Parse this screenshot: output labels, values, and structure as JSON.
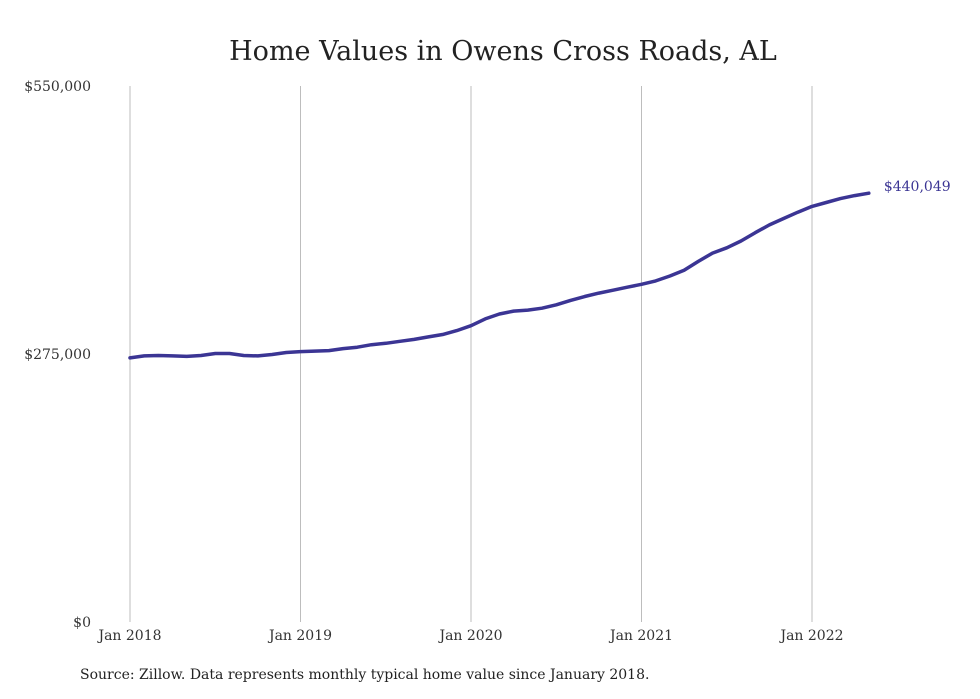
{
  "colors": {
    "line": "#3B3594",
    "grid": "#BDBDBD",
    "text": "#222222"
  },
  "source": "Source: Zillow. Data represents monthly typical home value since January 2018.",
  "chart_data": {
    "type": "line",
    "title": "Home Values in Owens Cross Roads, AL",
    "xlabel": "",
    "ylabel": "",
    "x_tick_labels": [
      "Jan 2018",
      "Jan 2019",
      "Jan 2020",
      "Jan 2021",
      "Jan 2022"
    ],
    "y_tick_labels": [
      "$0",
      "$275,000",
      "$550,000"
    ],
    "y_ticks": [
      0,
      275000,
      550000
    ],
    "ylim": [
      0,
      550000
    ],
    "grid": "vertical",
    "end_label": "$440,049",
    "series": [
      {
        "values": [
          [
            0,
            271000
          ],
          [
            1,
            273000
          ],
          [
            2,
            273500
          ],
          [
            3,
            273000
          ],
          [
            4,
            272500
          ],
          [
            5,
            273500
          ],
          [
            6,
            275500
          ],
          [
            7,
            275500
          ],
          [
            8,
            273500
          ],
          [
            9,
            273000
          ],
          [
            10,
            274500
          ],
          [
            11,
            276500
          ],
          [
            12,
            277500
          ],
          [
            13,
            278000
          ],
          [
            14,
            278500
          ],
          [
            15,
            280500
          ],
          [
            16,
            282000
          ],
          [
            17,
            284500
          ],
          [
            18,
            286000
          ],
          [
            19,
            288000
          ],
          [
            20,
            290000
          ],
          [
            21,
            292500
          ],
          [
            22,
            295000
          ],
          [
            23,
            299000
          ],
          [
            24,
            304000
          ],
          [
            25,
            311000
          ],
          [
            26,
            316000
          ],
          [
            27,
            319000
          ],
          [
            28,
            320000
          ],
          [
            29,
            322000
          ],
          [
            30,
            325500
          ],
          [
            31,
            330000
          ],
          [
            32,
            334000
          ],
          [
            33,
            337500
          ],
          [
            34,
            340500
          ],
          [
            35,
            343500
          ],
          [
            36,
            346500
          ],
          [
            37,
            350000
          ],
          [
            38,
            355000
          ],
          [
            39,
            361000
          ],
          [
            40,
            370000
          ],
          [
            41,
            378500
          ],
          [
            42,
            384000
          ],
          [
            43,
            391000
          ],
          [
            44,
            399500
          ],
          [
            45,
            407500
          ],
          [
            46,
            414000
          ],
          [
            47,
            420500
          ],
          [
            48,
            426500
          ],
          [
            49,
            430500
          ],
          [
            50,
            434500
          ],
          [
            51,
            437500
          ],
          [
            52,
            440049
          ]
        ]
      }
    ]
  }
}
